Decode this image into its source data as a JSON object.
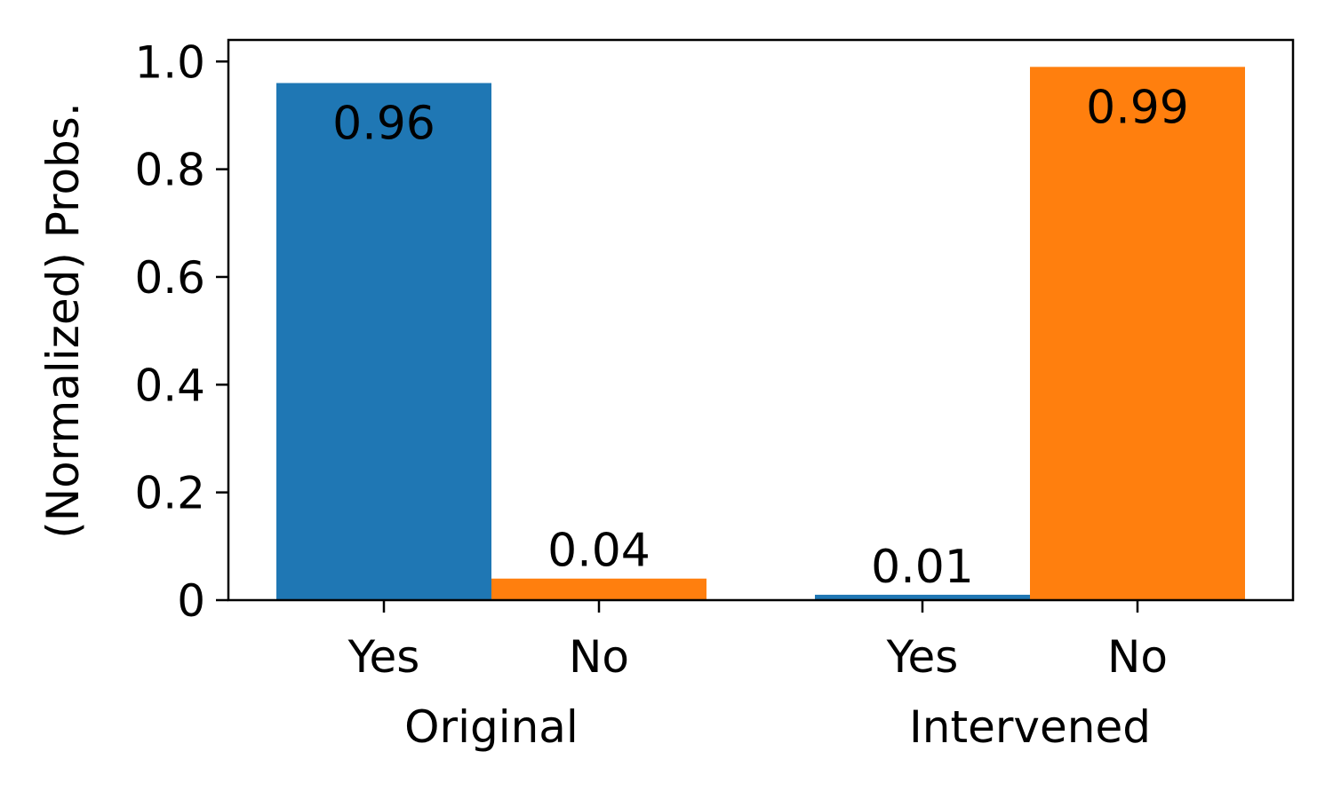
{
  "chart_data": {
    "type": "bar",
    "title": "",
    "xlabel": "",
    "ylabel": "(Normalized) Probs.",
    "ylim": [
      0,
      1.04
    ],
    "yticks": [
      {
        "value": 0,
        "label": "0"
      },
      {
        "value": 0.2,
        "label": "0.2"
      },
      {
        "value": 0.4,
        "label": "0.4"
      },
      {
        "value": 0.6,
        "label": "0.6"
      },
      {
        "value": 0.8,
        "label": "0.8"
      },
      {
        "value": 1.0,
        "label": "1.0"
      }
    ],
    "grid": false,
    "groups": [
      {
        "name": "Original",
        "bars": [
          {
            "category": "Yes",
            "value": 0.96,
            "label": "0.96",
            "color": "#1f77b4",
            "label_position": "inside"
          },
          {
            "category": "No",
            "value": 0.04,
            "label": "0.04",
            "color": "#ff7f0e",
            "label_position": "above"
          }
        ]
      },
      {
        "name": "Intervened",
        "bars": [
          {
            "category": "Yes",
            "value": 0.01,
            "label": "0.01",
            "color": "#1f77b4",
            "label_position": "above"
          },
          {
            "category": "No",
            "value": 0.99,
            "label": "0.99",
            "color": "#ff7f0e",
            "label_position": "inside"
          }
        ]
      }
    ]
  }
}
